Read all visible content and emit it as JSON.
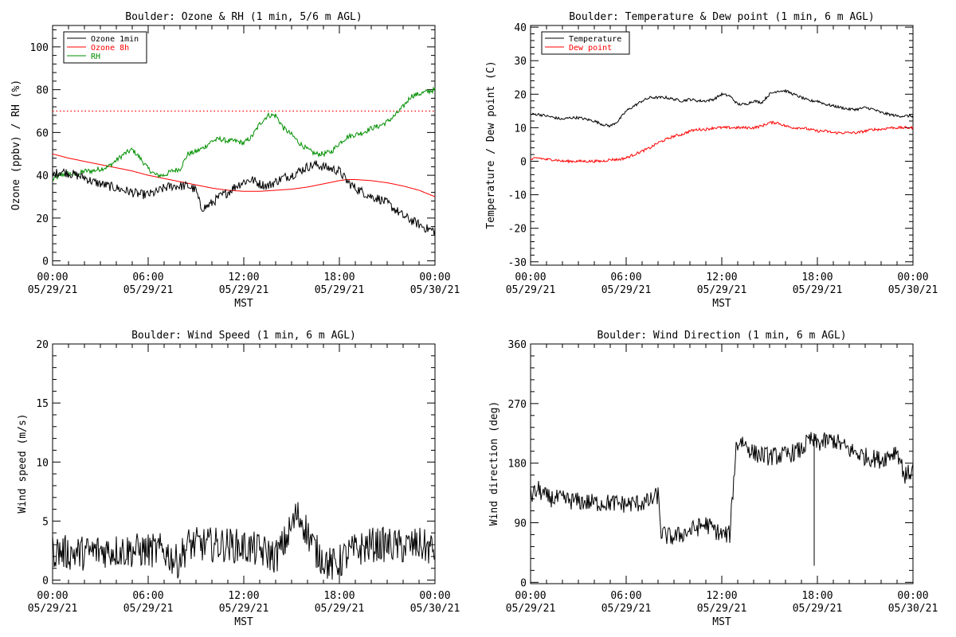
{
  "page": {
    "background": "#ffffff"
  },
  "chart_data": [
    {
      "id": "ozone",
      "type": "line",
      "title": "Boulder: Ozone & RH (1 min, 5/6 m AGL)",
      "xlabel": "MST",
      "ylabel": "Ozone (ppbv) / RH (%)",
      "xlim": [
        0,
        24
      ],
      "ylim": [
        -2,
        110
      ],
      "yticks": [
        0,
        20,
        40,
        60,
        80,
        100
      ],
      "xticks": [
        {
          "h": 0,
          "time": "00:00",
          "date": "05/29/21"
        },
        {
          "h": 6,
          "time": "06:00",
          "date": "05/29/21"
        },
        {
          "h": 12,
          "time": "12:00",
          "date": "05/29/21"
        },
        {
          "h": 18,
          "time": "18:00",
          "date": "05/29/21"
        },
        {
          "h": 24,
          "time": "00:00",
          "date": "05/30/21"
        }
      ],
      "legend": {
        "position": "top-left"
      },
      "reference_line": {
        "y": 70,
        "color": "#ff0000",
        "style": "dotted"
      },
      "series": [
        {
          "name": "Ozone 1min",
          "color": "#000000",
          "noise": 2.2,
          "x": [
            0,
            0.5,
            1,
            1.5,
            2,
            2.5,
            3,
            3.5,
            4,
            4.5,
            5,
            5.5,
            6,
            6.5,
            7,
            7.5,
            8,
            8.5,
            9,
            9.3,
            9.6,
            10,
            10.5,
            11,
            11.5,
            12,
            12.5,
            13,
            13.5,
            14,
            14.5,
            15,
            15.5,
            16,
            16.5,
            17,
            17.5,
            18,
            18.5,
            19,
            19.5,
            20,
            20.5,
            21,
            21.5,
            22,
            22.5,
            23,
            23.5,
            24
          ],
          "y": [
            40,
            42,
            41,
            40,
            39,
            37,
            36,
            35,
            34,
            33,
            32,
            31,
            31,
            32,
            34,
            35,
            35,
            35,
            33,
            25,
            25,
            27,
            30,
            32,
            35,
            37,
            38,
            36,
            35,
            37,
            39,
            40,
            42,
            44,
            45,
            44,
            43,
            42,
            37,
            34,
            32,
            30,
            29,
            27,
            24,
            21,
            19,
            17,
            15,
            14
          ]
        },
        {
          "name": "Ozone 8h",
          "color": "#ff0000",
          "noise": 0,
          "x": [
            0,
            1,
            2,
            3,
            4,
            5,
            6,
            7,
            8,
            9,
            10,
            11,
            12,
            13,
            14,
            15,
            16,
            17,
            18,
            18.5,
            19,
            20,
            21,
            22,
            23,
            24
          ],
          "y": [
            50,
            48,
            46.5,
            45,
            43.5,
            42,
            40,
            38.5,
            37,
            35.5,
            34,
            33,
            32.5,
            32.5,
            33,
            33.5,
            34.5,
            36,
            37.5,
            38,
            38,
            37.5,
            36.5,
            35,
            33,
            30
          ]
        },
        {
          "name": "RH",
          "color": "#008f00",
          "noise": 1.2,
          "x": [
            0,
            0.5,
            1,
            1.5,
            2,
            2.5,
            3,
            3.5,
            4,
            4.5,
            5,
            5.5,
            6,
            6.5,
            7,
            7.5,
            8,
            8.5,
            9,
            9.5,
            10,
            10.5,
            11,
            11.5,
            12,
            12.5,
            13,
            13.5,
            14,
            14.5,
            15,
            15.5,
            16,
            16.5,
            17,
            17.5,
            18,
            18.5,
            19,
            19.5,
            20,
            20.5,
            21,
            21.5,
            22,
            22.5,
            23,
            23.5,
            24
          ],
          "y": [
            38,
            40,
            41,
            40,
            42,
            42,
            43,
            44,
            47,
            50,
            52,
            48,
            43,
            40,
            40,
            42,
            43,
            50,
            51,
            53,
            56,
            57,
            56,
            56,
            55,
            58,
            64,
            68,
            68,
            62,
            59,
            55,
            52,
            50,
            50,
            51,
            55,
            58,
            59,
            60,
            62,
            63,
            65,
            68,
            72,
            77,
            78,
            79,
            80
          ]
        }
      ]
    },
    {
      "id": "temp",
      "type": "line",
      "title": "Boulder: Temperature & Dew point (1 min, 6 m AGL)",
      "xlabel": "MST",
      "ylabel": "Temperature / Dew point (C)",
      "xlim": [
        0,
        24
      ],
      "ylim": [
        -31,
        40.5
      ],
      "yticks": [
        -30,
        -20,
        -10,
        0,
        10,
        20,
        30,
        40
      ],
      "xticks": [
        {
          "h": 0,
          "time": "00:00",
          "date": "05/29/21"
        },
        {
          "h": 6,
          "time": "06:00",
          "date": "05/29/21"
        },
        {
          "h": 12,
          "time": "12:00",
          "date": "05/29/21"
        },
        {
          "h": 18,
          "time": "18:00",
          "date": "05/29/21"
        },
        {
          "h": 24,
          "time": "00:00",
          "date": "05/30/21"
        }
      ],
      "legend": {
        "position": "top-left"
      },
      "series": [
        {
          "name": "Temperature",
          "color": "#000000",
          "noise": 0.4,
          "x": [
            0,
            0.5,
            1,
            1.5,
            2,
            2.5,
            3,
            3.5,
            4,
            4.5,
            5,
            5.5,
            6,
            6.5,
            7,
            7.5,
            8,
            8.5,
            9,
            9.5,
            10,
            10.5,
            11,
            11.5,
            12,
            12.5,
            13,
            13.5,
            14,
            14.5,
            15,
            15.5,
            16,
            16.5,
            17,
            17.5,
            18,
            18.5,
            19,
            19.5,
            20,
            20.5,
            21,
            21.5,
            22,
            22.5,
            23,
            23.5,
            24
          ],
          "y": [
            14,
            14,
            13.5,
            13,
            12.5,
            13,
            13,
            12.5,
            12,
            11,
            10.5,
            12,
            15,
            16.5,
            18,
            19,
            19,
            19,
            18.5,
            18,
            18.5,
            18,
            18,
            18.5,
            20,
            19.5,
            17,
            17,
            18,
            17.5,
            20,
            21,
            21,
            20,
            19,
            18,
            18,
            17,
            16.5,
            16,
            15.5,
            15.5,
            16,
            15.5,
            14.5,
            14,
            13.5,
            13.5,
            13.5
          ]
        },
        {
          "name": "Dew point",
          "color": "#ff0000",
          "noise": 0.4,
          "x": [
            0,
            0.5,
            1,
            1.5,
            2,
            2.5,
            3,
            3.5,
            4,
            4.5,
            5,
            5.5,
            6,
            6.5,
            7,
            7.5,
            8,
            8.5,
            9,
            9.5,
            10,
            10.5,
            11,
            11.5,
            12,
            12.5,
            13,
            13.5,
            14,
            14.5,
            15,
            15.5,
            16,
            16.5,
            17,
            17.5,
            18,
            18.5,
            19,
            19.5,
            20,
            20.5,
            21,
            21.5,
            22,
            22.5,
            23,
            23.5,
            24
          ],
          "y": [
            0.5,
            1,
            0.5,
            0.5,
            0,
            0,
            0,
            0,
            0,
            0,
            0.5,
            0.5,
            1,
            2,
            3,
            4,
            5.5,
            6.5,
            7.5,
            8,
            9,
            9.5,
            9.5,
            10,
            10,
            10,
            10,
            10,
            10,
            10.5,
            11.5,
            11.5,
            10.5,
            10,
            10,
            9.5,
            9,
            9,
            8.5,
            8.5,
            8.5,
            8.5,
            9,
            9.5,
            9.5,
            10,
            10,
            10,
            10
          ]
        }
      ]
    },
    {
      "id": "wspd",
      "type": "line",
      "title": "Boulder: Wind Speed (1 min, 6 m AGL)",
      "xlabel": "MST",
      "ylabel": "Wind speed (m/s)",
      "xlim": [
        0,
        24
      ],
      "ylim": [
        -0.3,
        20
      ],
      "yticks": [
        0,
        5,
        10,
        15,
        20
      ],
      "xticks": [
        {
          "h": 0,
          "time": "00:00",
          "date": "05/29/21"
        },
        {
          "h": 6,
          "time": "06:00",
          "date": "05/29/21"
        },
        {
          "h": 12,
          "time": "12:00",
          "date": "05/29/21"
        },
        {
          "h": 18,
          "time": "18:00",
          "date": "05/29/21"
        },
        {
          "h": 24,
          "time": "00:00",
          "date": "05/30/21"
        }
      ],
      "series": [
        {
          "name": "",
          "color": "#000000",
          "noise": 1.5,
          "x": [
            0,
            1,
            2,
            3,
            4,
            5,
            6,
            7,
            7.8,
            8.5,
            9,
            10,
            11,
            12,
            13,
            14,
            14.5,
            15,
            15.3,
            15.7,
            16,
            16.5,
            17,
            17.5,
            18,
            18.5,
            19,
            20,
            21,
            22,
            23,
            24
          ],
          "y": [
            2.5,
            2.3,
            2.3,
            2.5,
            2.5,
            2.5,
            2.5,
            2.5,
            1.5,
            3,
            3,
            3,
            3,
            2.8,
            2.5,
            2,
            3,
            4.5,
            5.5,
            5,
            4,
            2.5,
            1.8,
            1.2,
            1.5,
            2.2,
            2.5,
            3,
            3,
            2.8,
            3,
            2.5
          ]
        }
      ]
    },
    {
      "id": "wdir",
      "type": "line",
      "title": "Boulder: Wind Direction (1 min, 6 m AGL)",
      "xlabel": "MST",
      "ylabel": "Wind direction (deg)",
      "xlim": [
        0,
        24
      ],
      "ylim": [
        -2,
        360
      ],
      "yticks": [
        0,
        90,
        180,
        270,
        360
      ],
      "xticks": [
        {
          "h": 0,
          "time": "00:00",
          "date": "05/29/21"
        },
        {
          "h": 6,
          "time": "06:00",
          "date": "05/29/21"
        },
        {
          "h": 12,
          "time": "12:00",
          "date": "05/29/21"
        },
        {
          "h": 18,
          "time": "18:00",
          "date": "05/29/21"
        },
        {
          "h": 24,
          "time": "00:00",
          "date": "05/30/21"
        }
      ],
      "series": [
        {
          "name": "",
          "color": "#000000",
          "noise": 14,
          "x": [
            0,
            0.5,
            1,
            2,
            3,
            4,
            5,
            6,
            7,
            7.5,
            8,
            8.2,
            8.5,
            9,
            10,
            11,
            12,
            12.5,
            12.9,
            13.2,
            14,
            15,
            16,
            17,
            17.5,
            18,
            19,
            20,
            21,
            22,
            23,
            23.5,
            24
          ],
          "y": [
            130,
            140,
            128,
            125,
            122,
            120,
            120,
            118,
            120,
            122,
            132,
            75,
            70,
            68,
            78,
            88,
            72,
            72,
            205,
            215,
            195,
            190,
            192,
            200,
            215,
            210,
            215,
            200,
            190,
            185,
            200,
            160,
            170
          ]
        }
      ]
    }
  ]
}
